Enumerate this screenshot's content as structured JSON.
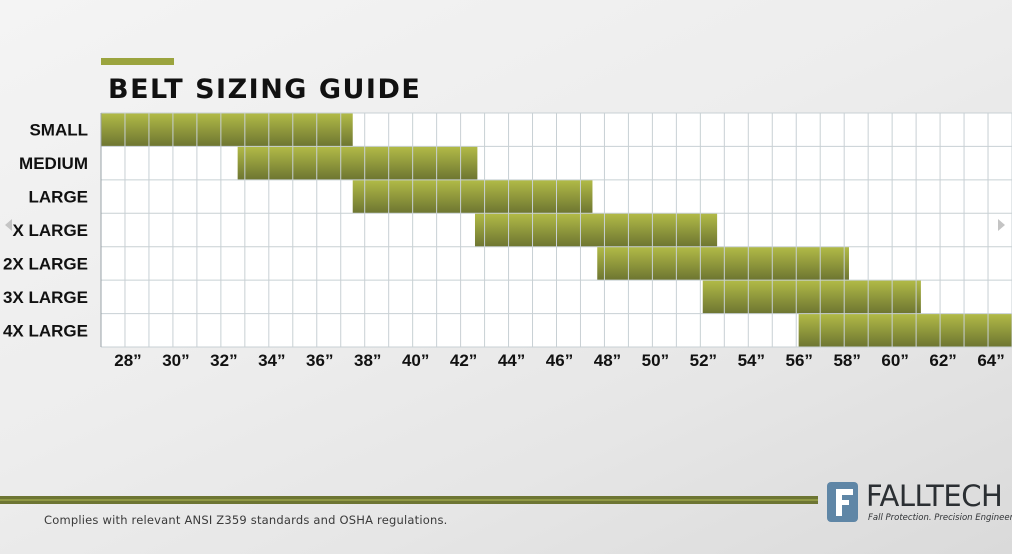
{
  "title": "BELT SIZING GUIDE",
  "footer": {
    "compliance": "Complies with relevant ANSI Z359 standards and OSHA regulations."
  },
  "brand": {
    "name": "FALLTECH",
    "tagline": "Fall Protection. Precision Engineered.",
    "logo_icon": "falltech-logo-icon"
  },
  "colors": {
    "bar_light": "#b2bb47",
    "bar_dark": "#6d7531",
    "accent": "#9ba43e",
    "footer_stripe": "#6d7533"
  },
  "chart_data": {
    "type": "bar",
    "orientation": "horizontal-range",
    "title": "BELT SIZING GUIDE",
    "xlabel": "",
    "ylabel": "",
    "x_tick_labels": [
      "28”",
      "30”",
      "32”",
      "34”",
      "36”",
      "38”",
      "40”",
      "42”",
      "44”",
      "46”",
      "48”",
      "50”",
      "52”",
      "54”",
      "56”",
      "58”",
      "60”",
      "62”",
      "64”"
    ],
    "x_ticks": [
      28,
      30,
      32,
      34,
      36,
      38,
      40,
      42,
      44,
      46,
      48,
      50,
      52,
      54,
      56,
      58,
      60,
      62,
      64
    ],
    "xlim": [
      27,
      65
    ],
    "grid": true,
    "categories": [
      "SMALL",
      "MEDIUM",
      "LARGE",
      "X LARGE",
      "2X LARGE",
      "3X LARGE",
      "4X LARGE"
    ],
    "ranges": [
      [
        27,
        37.5
      ],
      [
        32.7,
        42.7
      ],
      [
        37.5,
        47.5
      ],
      [
        42.6,
        52.7
      ],
      [
        47.7,
        58.2
      ],
      [
        52.1,
        61.2
      ],
      [
        56.1,
        65
      ]
    ]
  }
}
